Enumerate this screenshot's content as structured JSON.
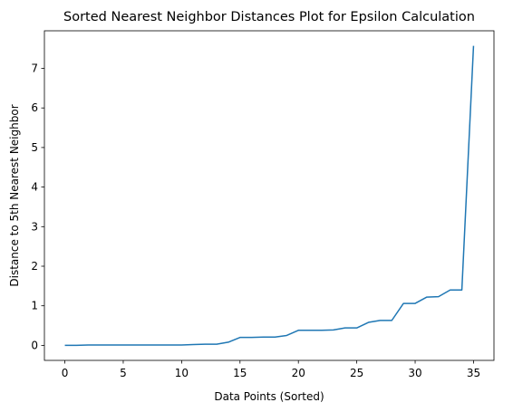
{
  "chart_data": {
    "type": "line",
    "title": "Sorted Nearest Neighbor Distances Plot for Epsilon Calculation",
    "xlabel": "Data Points (Sorted)",
    "ylabel": "Distance to 5th Nearest Neighbor",
    "xlim": [
      -1.75,
      36.75
    ],
    "ylim": [
      -0.38,
      7.95
    ],
    "xticks": [
      0,
      5,
      10,
      15,
      20,
      25,
      30,
      35
    ],
    "yticks": [
      0,
      1,
      2,
      3,
      4,
      5,
      6,
      7
    ],
    "grid": false,
    "series": [
      {
        "color": "#1f77b4",
        "x": [
          0,
          1,
          2,
          3,
          4,
          5,
          6,
          7,
          8,
          9,
          10,
          11,
          12,
          13,
          14,
          15,
          16,
          17,
          18,
          19,
          20,
          21,
          22,
          23,
          24,
          25,
          26,
          27,
          28,
          29,
          30,
          31,
          32,
          33,
          34,
          35
        ],
        "values": [
          0.0,
          0.0,
          0.01,
          0.01,
          0.01,
          0.01,
          0.01,
          0.01,
          0.01,
          0.01,
          0.01,
          0.02,
          0.03,
          0.03,
          0.08,
          0.2,
          0.2,
          0.21,
          0.21,
          0.25,
          0.38,
          0.38,
          0.38,
          0.39,
          0.44,
          0.44,
          0.58,
          0.63,
          0.63,
          1.06,
          1.06,
          1.22,
          1.23,
          1.4,
          1.4,
          7.57
        ]
      }
    ]
  }
}
